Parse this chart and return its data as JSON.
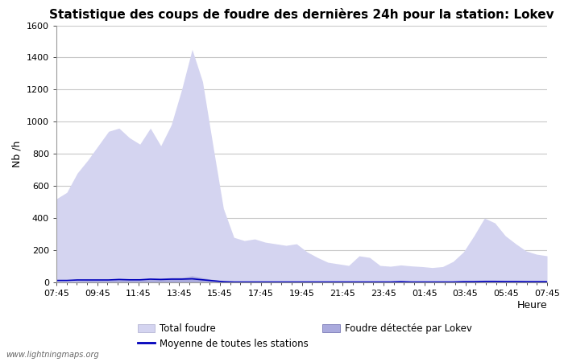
{
  "title": "Statistique des coups de foudre des dernières 24h pour la station: Lokev",
  "xlabel": "Heure",
  "ylabel": "Nb /h",
  "x_labels": [
    "07:45",
    "09:45",
    "11:45",
    "13:45",
    "15:45",
    "17:45",
    "19:45",
    "21:45",
    "23:45",
    "01:45",
    "03:45",
    "05:45",
    "07:45"
  ],
  "ylim": [
    0,
    1600
  ],
  "yticks": [
    0,
    200,
    400,
    600,
    800,
    1000,
    1200,
    1400,
    1600
  ],
  "background_color": "#ffffff",
  "plot_bg_color": "#ffffff",
  "grid_color": "#c8c8c8",
  "title_fontsize": 11,
  "total_foudre_color": "#d4d4f0",
  "lokev_color": "#aaaadd",
  "moyenne_color": "#0000bb",
  "watermark": "www.lightningmaps.org",
  "total_foudre_values": [
    520,
    560,
    680,
    760,
    850,
    940,
    960,
    900,
    860,
    960,
    850,
    980,
    1200,
    1450,
    1250,
    850,
    460,
    280,
    260,
    270,
    250,
    240,
    230,
    240,
    190,
    155,
    125,
    115,
    105,
    165,
    155,
    105,
    100,
    108,
    102,
    98,
    92,
    98,
    130,
    190,
    290,
    400,
    370,
    290,
    240,
    195,
    175,
    165
  ],
  "lokev_values": [
    5,
    5,
    10,
    12,
    12,
    12,
    20,
    18,
    18,
    25,
    25,
    30,
    30,
    40,
    28,
    18,
    8,
    4,
    2,
    2,
    2,
    2,
    2,
    2,
    2,
    2,
    2,
    2,
    2,
    2,
    2,
    2,
    2,
    4,
    2,
    2,
    2,
    2,
    2,
    4,
    4,
    8,
    8,
    6,
    6,
    6,
    6,
    6
  ],
  "moyenne_values": [
    12,
    12,
    15,
    15,
    15,
    15,
    18,
    16,
    16,
    20,
    18,
    20,
    20,
    22,
    16,
    10,
    4,
    2,
    2,
    2,
    2,
    2,
    2,
    2,
    2,
    2,
    2,
    2,
    2,
    2,
    2,
    2,
    2,
    4,
    2,
    2,
    2,
    2,
    2,
    4,
    4,
    6,
    6,
    5,
    5,
    4,
    4,
    4
  ]
}
